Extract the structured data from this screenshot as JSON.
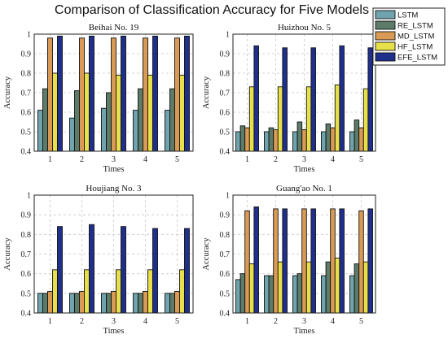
{
  "chart_data": {
    "type": "bar",
    "title": "Comparison of Classification Accuracy for Five Models",
    "legend": {
      "placement": "top-right",
      "series": [
        {
          "name": "LSTM",
          "color": "#6fa3ad"
        },
        {
          "name": "RE_LSTM",
          "color": "#5c7b68"
        },
        {
          "name": "MD_LSTM",
          "color": "#d99a55"
        },
        {
          "name": "HF_LSTM",
          "color": "#e8e04a"
        },
        {
          "name": "EFE_LSTM",
          "color": "#1f2f8c"
        }
      ]
    },
    "panels": [
      {
        "title": "Beihai No. 19",
        "xlabel": "Times",
        "ylabel": "Accuracy",
        "categories": [
          "1",
          "2",
          "3",
          "4",
          "5"
        ],
        "ylim": [
          0.4,
          1.0
        ],
        "yticks": [
          "0.4",
          "0.5",
          "0.6",
          "0.7",
          "0.8",
          "0.9",
          "1"
        ],
        "grid": true,
        "values": [
          [
            0.61,
            0.72,
            0.98,
            0.8,
            0.99
          ],
          [
            0.57,
            0.71,
            0.98,
            0.8,
            0.99
          ],
          [
            0.62,
            0.7,
            0.98,
            0.79,
            0.99
          ],
          [
            0.61,
            0.72,
            0.98,
            0.79,
            0.99
          ],
          [
            0.61,
            0.72,
            0.98,
            0.79,
            0.99
          ]
        ]
      },
      {
        "title": "Huizhou No. 5",
        "xlabel": "Times",
        "ylabel": "Accuracy",
        "categories": [
          "1",
          "2",
          "3",
          "4",
          "5"
        ],
        "ylim": [
          0.4,
          1.0
        ],
        "yticks": [
          "0.4",
          "0.5",
          "0.6",
          "0.7",
          "0.8",
          "0.9",
          "1"
        ],
        "grid": true,
        "values": [
          [
            0.5,
            0.53,
            0.52,
            0.73,
            0.94
          ],
          [
            0.5,
            0.52,
            0.51,
            0.73,
            0.93
          ],
          [
            0.5,
            0.55,
            0.51,
            0.73,
            0.93
          ],
          [
            0.5,
            0.54,
            0.52,
            0.74,
            0.94
          ],
          [
            0.5,
            0.56,
            0.52,
            0.72,
            0.93
          ]
        ]
      },
      {
        "title": "Houjiang No. 3",
        "xlabel": "Times",
        "ylabel": "Accuracy",
        "categories": [
          "1",
          "2",
          "3",
          "4",
          "5"
        ],
        "ylim": [
          0.4,
          1.0
        ],
        "yticks": [
          "0.4",
          "0.5",
          "0.6",
          "0.7",
          "0.8",
          "0.9",
          "1"
        ],
        "grid": true,
        "values": [
          [
            0.5,
            0.5,
            0.51,
            0.62,
            0.84
          ],
          [
            0.5,
            0.5,
            0.51,
            0.62,
            0.85
          ],
          [
            0.5,
            0.5,
            0.51,
            0.62,
            0.84
          ],
          [
            0.5,
            0.5,
            0.51,
            0.62,
            0.83
          ],
          [
            0.5,
            0.5,
            0.51,
            0.62,
            0.83
          ]
        ]
      },
      {
        "title": "Guang'ao No. 1",
        "xlabel": "Times",
        "ylabel": "Accuracy",
        "categories": [
          "1",
          "2",
          "3",
          "4",
          "5"
        ],
        "ylim": [
          0.4,
          1.0
        ],
        "yticks": [
          "0.4",
          "0.5",
          "0.6",
          "0.7",
          "0.8",
          "0.9",
          "1"
        ],
        "grid": true,
        "values": [
          [
            0.57,
            0.6,
            0.92,
            0.65,
            0.94
          ],
          [
            0.59,
            0.59,
            0.93,
            0.66,
            0.93
          ],
          [
            0.59,
            0.6,
            0.93,
            0.66,
            0.93
          ],
          [
            0.59,
            0.66,
            0.93,
            0.68,
            0.93
          ],
          [
            0.59,
            0.65,
            0.92,
            0.66,
            0.93
          ]
        ]
      }
    ]
  }
}
